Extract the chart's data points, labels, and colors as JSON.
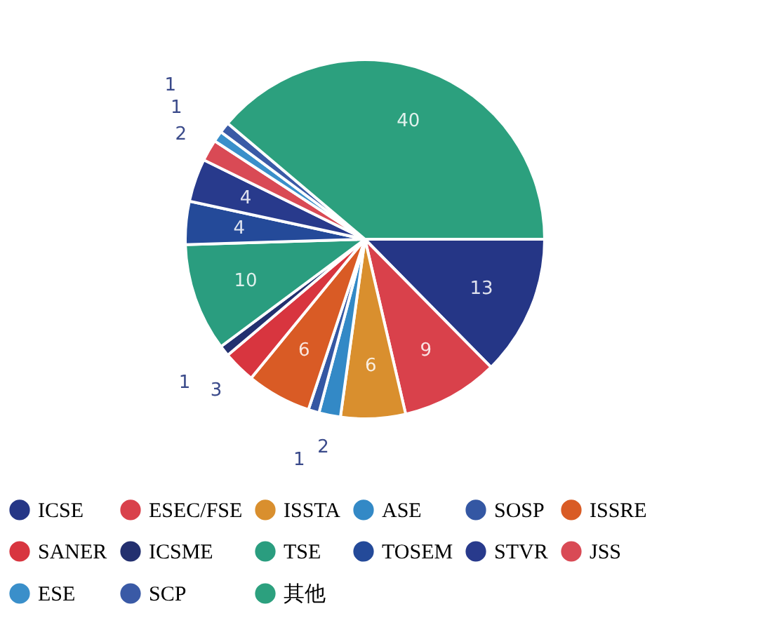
{
  "chart_data": {
    "type": "pie",
    "categories": [
      "ICSE",
      "ESEC/FSE",
      "ISSTA",
      "ASE",
      "SOSP",
      "ISSRE",
      "SANER",
      "ICSME",
      "TSE",
      "TOSEM",
      "STVR",
      "JSS",
      "ESE",
      "SCP",
      "其他"
    ],
    "values": [
      13,
      9,
      6,
      2,
      1,
      6,
      3,
      1,
      10,
      4,
      4,
      2,
      1,
      1,
      40
    ],
    "colors": [
      "#253686",
      "#d9414b",
      "#d98f2e",
      "#3389c6",
      "#3457a3",
      "#d95b25",
      "#d8353f",
      "#23306f",
      "#2a9d7f",
      "#244a99",
      "#283a8c",
      "#d94a55",
      "#3a8fca",
      "#3a5aa6",
      "#2ca07e"
    ],
    "data_labels": true,
    "legend": "bottom"
  }
}
